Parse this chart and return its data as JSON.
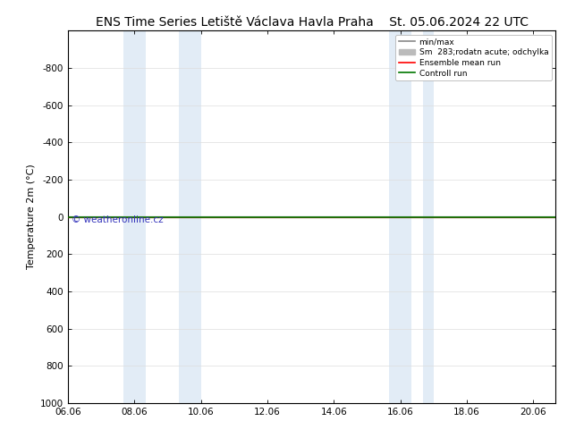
{
  "title": "ENS Time Series Letiště Václava Havla Praha",
  "title_date": "St. 05.06.2024 22 UTC",
  "ylabel": "Temperature 2m (°C)",
  "ylim_top": -1000,
  "ylim_bottom": 1000,
  "yticks": [
    -800,
    -600,
    -400,
    -200,
    0,
    200,
    400,
    600,
    800,
    1000
  ],
  "xlim_start": 0.0,
  "xlim_end": 14.67,
  "xtick_labels": [
    "06.06",
    "08.06",
    "10.06",
    "12.06",
    "14.06",
    "16.06",
    "18.06",
    "20.06"
  ],
  "xtick_positions": [
    0,
    2,
    4,
    6,
    8,
    10,
    12,
    14
  ],
  "blue_regions": [
    [
      1.67,
      2.33
    ],
    [
      3.33,
      4.0
    ],
    [
      9.67,
      10.33
    ],
    [
      10.67,
      11.0
    ]
  ],
  "watermark": "© weatheronline.cz",
  "watermark_color": "#3333bb",
  "legend_entries": [
    "min/max",
    "Sm  283;rodatn acute; odchylka",
    "Ensemble mean run",
    "Controll run"
  ],
  "legend_colors": [
    "#888888",
    "#bbbbbb",
    "#ff0000",
    "#007700"
  ],
  "background_color": "#ffffff",
  "plot_bg_color": "#ffffff",
  "title_fontsize": 10,
  "axis_fontsize": 8,
  "tick_fontsize": 7.5,
  "blue_fill_color": "#cfe0f0",
  "blue_fill_alpha": 0.6,
  "grid_color": "#dddddd"
}
